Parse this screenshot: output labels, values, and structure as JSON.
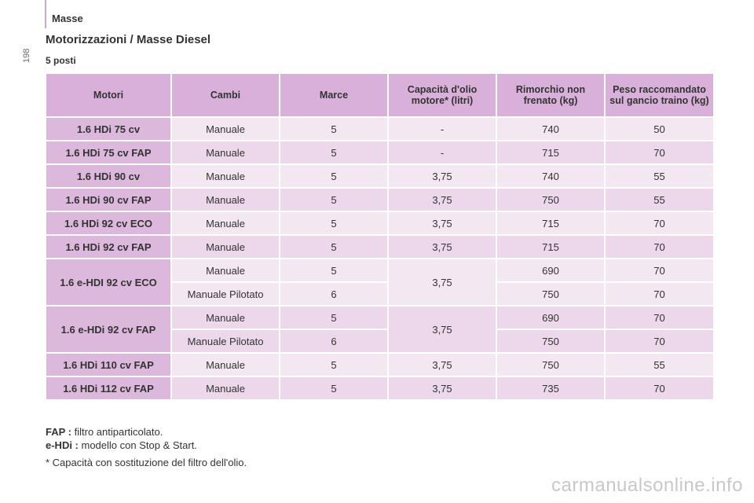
{
  "page_number": "198",
  "section": "Masse",
  "title": "Motorizzazioni / Masse Diesel",
  "subtitle": "5 posti",
  "table": {
    "headers": {
      "motori": "Motori",
      "cambi": "Cambi",
      "marce": "Marce",
      "capacita": "Capacità d'olio motore* (litri)",
      "rimorchio": "Rimorchio non frenato (kg)",
      "peso": "Peso raccomandato sul gancio traino (kg)"
    },
    "rows": [
      {
        "motore": "1.6 HDi 75 cv",
        "cambio": "Manuale",
        "marce": "5",
        "olio": "-",
        "rimorchio": "740",
        "peso": "50"
      },
      {
        "motore": "1.6 HDi 75 cv FAP",
        "cambio": "Manuale",
        "marce": "5",
        "olio": "-",
        "rimorchio": "715",
        "peso": "70"
      },
      {
        "motore": "1.6 HDi 90 cv",
        "cambio": "Manuale",
        "marce": "5",
        "olio": "3,75",
        "rimorchio": "740",
        "peso": "55"
      },
      {
        "motore": "1.6 HDi 90 cv FAP",
        "cambio": "Manuale",
        "marce": "5",
        "olio": "3,75",
        "rimorchio": "750",
        "peso": "55"
      },
      {
        "motore": "1.6 HDi 92 cv ECO",
        "cambio": "Manuale",
        "marce": "5",
        "olio": "3,75",
        "rimorchio": "715",
        "peso": "70"
      },
      {
        "motore": "1.6 HDi 92 cv FAP",
        "cambio": "Manuale",
        "marce": "5",
        "olio": "3,75",
        "rimorchio": "715",
        "peso": "70"
      }
    ],
    "ehdi_eco": {
      "motore": "1.6 e-HDI 92 cv ECO",
      "olio": "3,75",
      "a": {
        "cambio": "Manuale",
        "marce": "5",
        "rimorchio": "690",
        "peso": "70"
      },
      "b": {
        "cambio": "Manuale Pilotato",
        "marce": "6",
        "rimorchio": "750",
        "peso": "70"
      }
    },
    "ehdi_fap": {
      "motore": "1.6 e-HDi 92 cv FAP",
      "olio": "3,75",
      "a": {
        "cambio": "Manuale",
        "marce": "5",
        "rimorchio": "690",
        "peso": "70"
      },
      "b": {
        "cambio": "Manuale Pilotato",
        "marce": "6",
        "rimorchio": "750",
        "peso": "70"
      }
    },
    "tail_rows": [
      {
        "motore": "1.6 HDi 110 cv FAP",
        "cambio": "Manuale",
        "marce": "5",
        "olio": "3,75",
        "rimorchio": "750",
        "peso": "55"
      },
      {
        "motore": "1.6 HDi 112 cv FAP",
        "cambio": "Manuale",
        "marce": "5",
        "olio": "3,75",
        "rimorchio": "735",
        "peso": "70"
      }
    ]
  },
  "notes": {
    "fap_label": "FAP :",
    "fap_text": " filtro antiparticolato.",
    "ehdi_label": "e-HDi :",
    "ehdi_text": " modello con Stop & Start.",
    "footnote": "* Capacità con sostituzione del filtro dell'olio."
  },
  "watermark": "carmanualsonline.info",
  "colors": {
    "header": "#d9b0d9",
    "motor_cell": "#dcb8dc",
    "row_light": "#f3e7f2",
    "row_alt": "#ecd8ea",
    "accent_bar": "#c9a7d4"
  }
}
